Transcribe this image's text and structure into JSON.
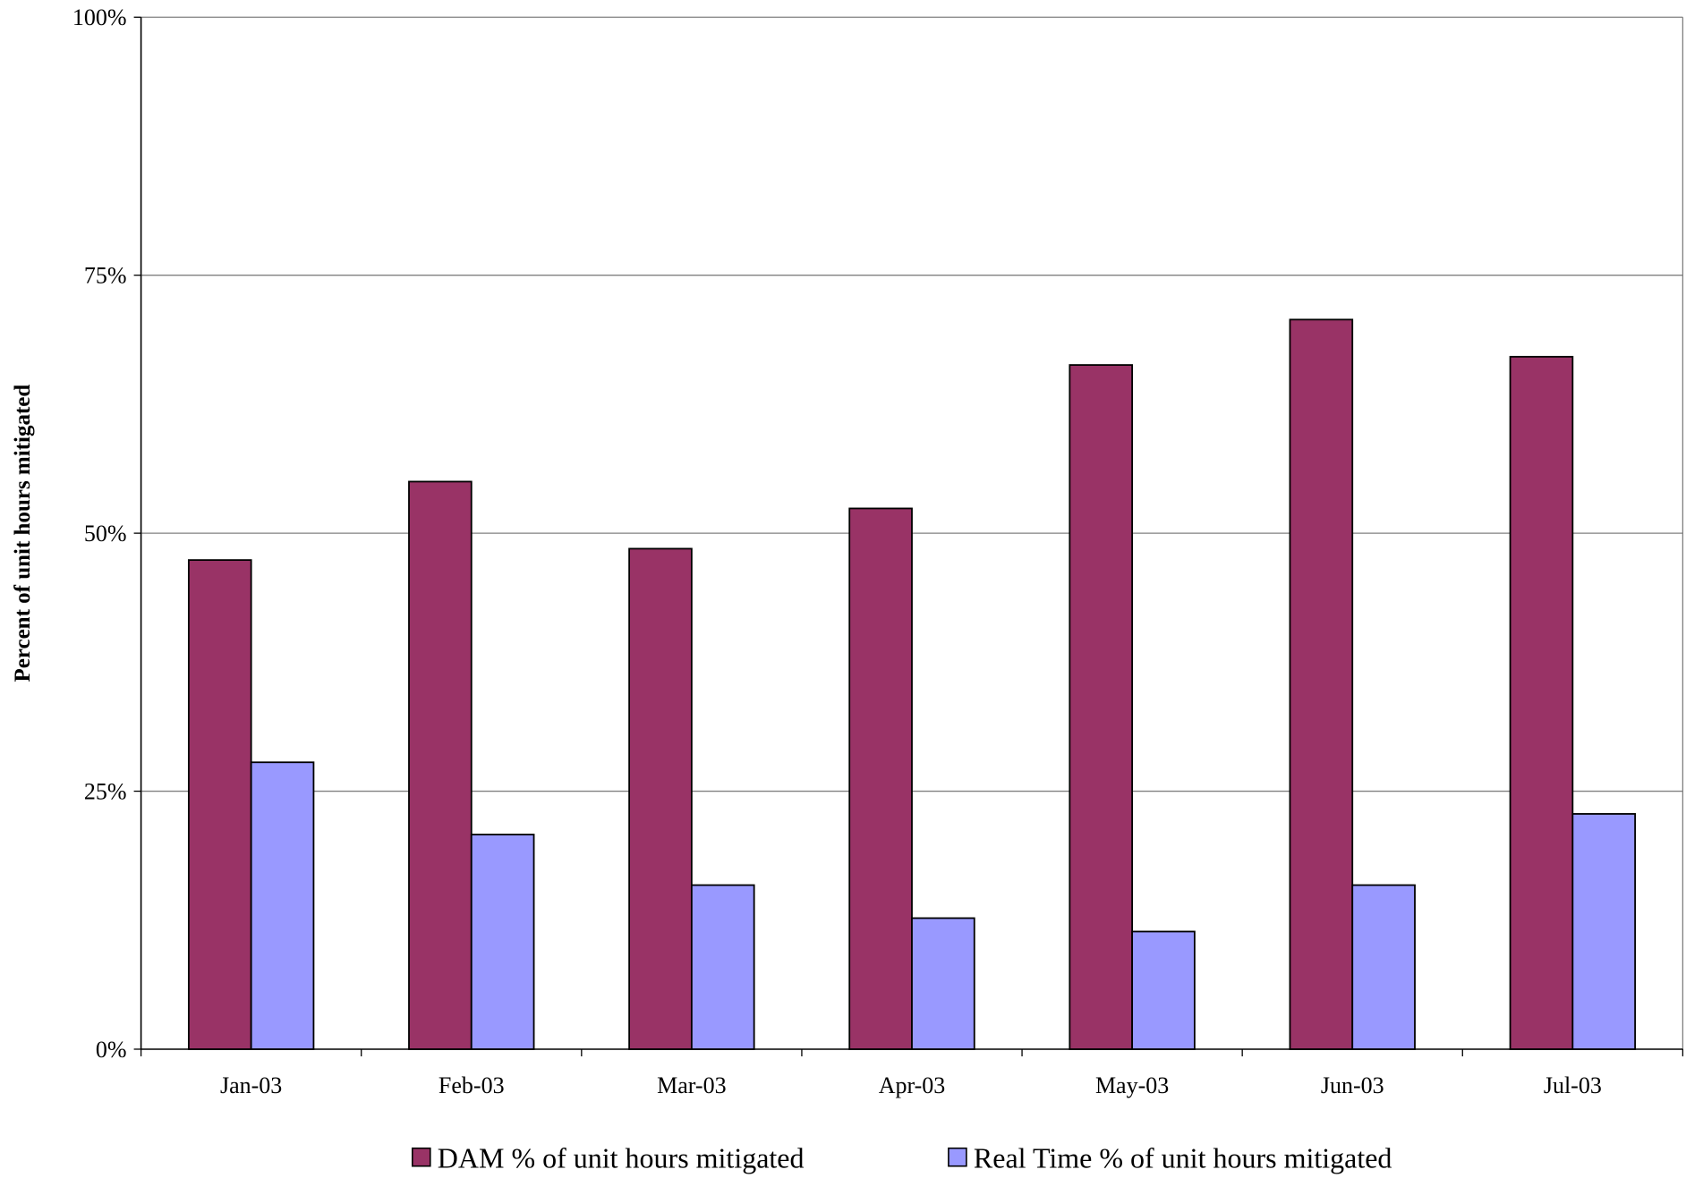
{
  "chart_data": {
    "type": "bar",
    "title": "",
    "xlabel": "",
    "ylabel": "Percent of unit hours mitigated",
    "categories": [
      "Jan-03",
      "Feb-03",
      "Mar-03",
      "Apr-03",
      "May-03",
      "Jun-03",
      "Jul-03"
    ],
    "series": [
      {
        "name": "DAM % of unit hours mitigated",
        "color": "#993366",
        "values": [
          47.4,
          55.0,
          48.5,
          52.4,
          66.3,
          70.7,
          67.1
        ]
      },
      {
        "name": "Real Time % of unit hours mitigated",
        "color": "#9999ff",
        "values": [
          27.8,
          20.8,
          15.9,
          12.7,
          11.4,
          15.9,
          22.8
        ]
      }
    ],
    "ylim": [
      0,
      100
    ],
    "yticks": [
      "0%",
      "25%",
      "50%",
      "75%",
      "100%"
    ],
    "grid": true,
    "legend": "bottom"
  }
}
